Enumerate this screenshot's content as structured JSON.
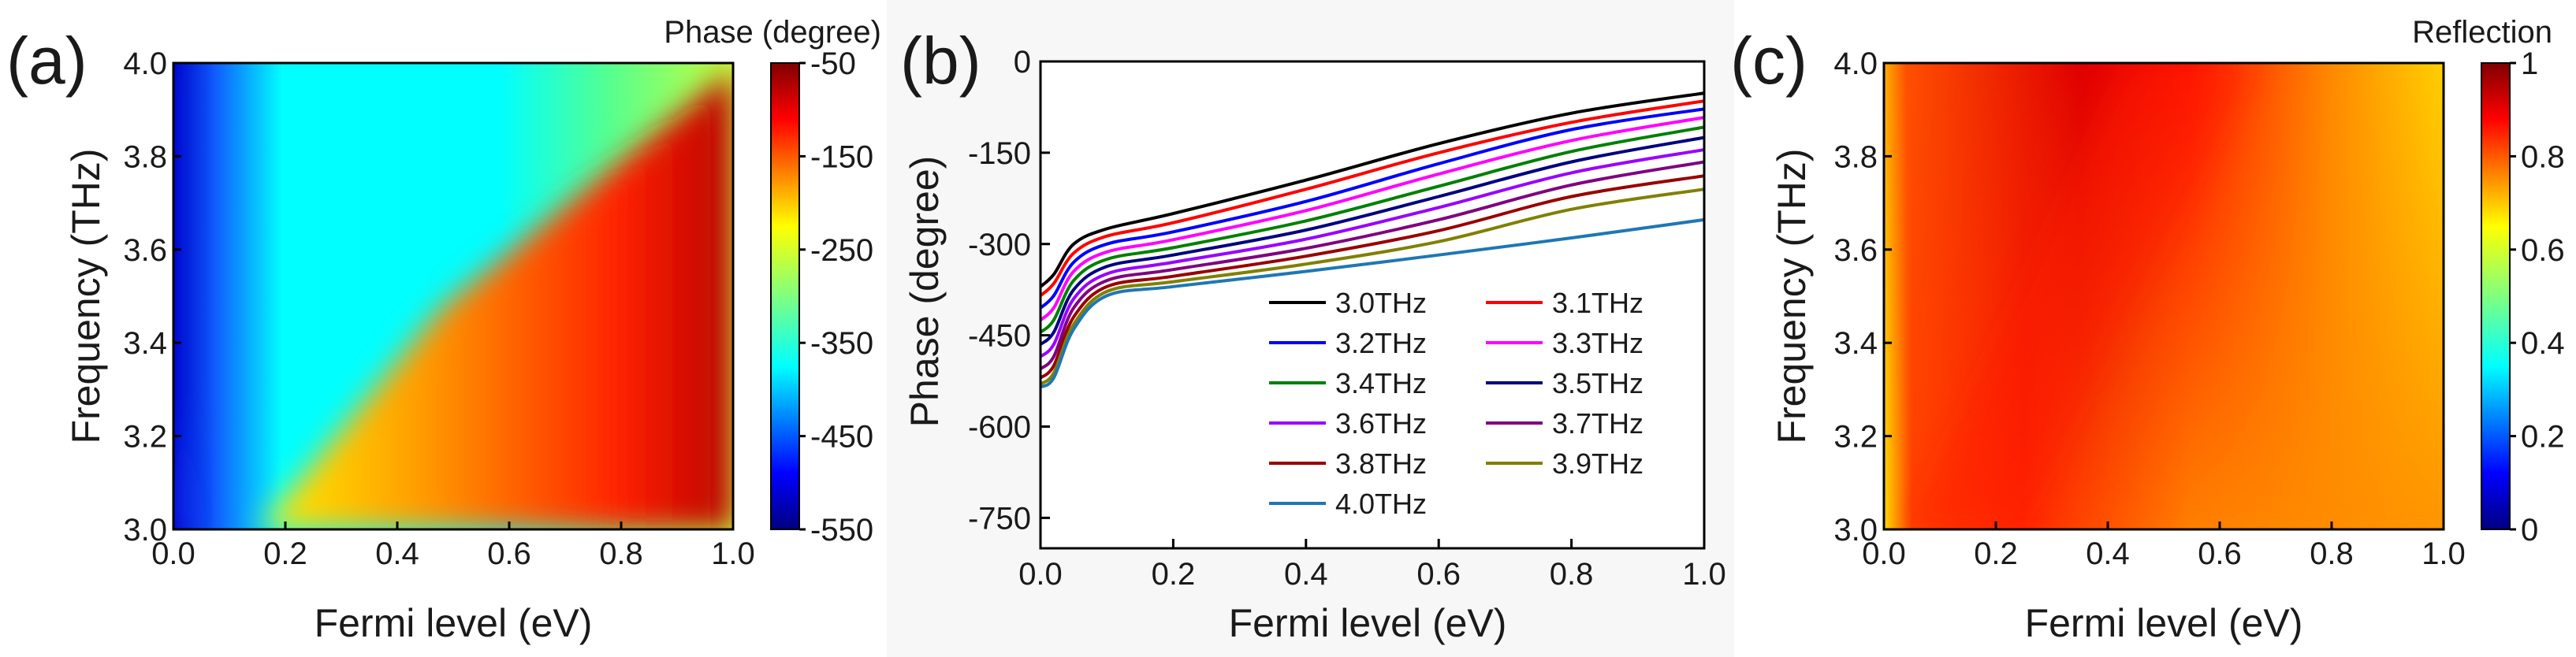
{
  "panels": {
    "a": {
      "label": "(a)"
    },
    "b": {
      "label": "(b)"
    },
    "c": {
      "label": "(c)"
    }
  },
  "chart_data": [
    {
      "id": "a",
      "type": "heatmap",
      "title": "",
      "xlabel": "Fermi level (eV)",
      "ylabel": "Frequency (THz)",
      "xlim": [
        0.0,
        1.0
      ],
      "ylim": [
        3.0,
        4.0
      ],
      "xticks": [
        "0.0",
        "0.2",
        "0.4",
        "0.6",
        "0.8",
        "1.0"
      ],
      "yticks": [
        "3.0",
        "3.2",
        "3.4",
        "3.6",
        "3.8",
        "4.0"
      ],
      "colorbar": {
        "title": "Phase (degree)",
        "range": [
          -550,
          -50
        ],
        "ticks": [
          "-50",
          "-150",
          "-250",
          "-350",
          "-450",
          "-550"
        ],
        "colormap": [
          "#000080",
          "#0000ff",
          "#00ffff",
          "#80ff80",
          "#ffff00",
          "#ff0000",
          "#800000"
        ]
      }
    },
    {
      "id": "b",
      "type": "line",
      "title": "",
      "xlabel": "Fermi level (eV)",
      "ylabel": "Phase (degree)",
      "xlim": [
        0.0,
        1.0
      ],
      "ylim": [
        -800,
        0
      ],
      "xticks": [
        "0.0",
        "0.2",
        "0.4",
        "0.6",
        "0.8",
        "1.0"
      ],
      "yticks": [
        "0",
        "-150",
        "-300",
        "-450",
        "-600",
        "-750"
      ],
      "x": [
        0.0,
        0.02,
        0.05,
        0.1,
        0.2,
        0.4,
        0.6,
        0.8,
        1.0
      ],
      "series": [
        {
          "name": "3.0THz",
          "color": "#000000",
          "values": [
            -370,
            -350,
            -300,
            -275,
            -250,
            -195,
            -135,
            -85,
            -52
          ]
        },
        {
          "name": "3.1THz",
          "color": "#ff0000",
          "values": [
            -385,
            -365,
            -315,
            -287,
            -265,
            -210,
            -150,
            -100,
            -65
          ]
        },
        {
          "name": "3.2THz",
          "color": "#0000ff",
          "values": [
            -405,
            -385,
            -330,
            -300,
            -280,
            -230,
            -168,
            -112,
            -78
          ]
        },
        {
          "name": "3.3THz",
          "color": "#ff00ff",
          "values": [
            -425,
            -405,
            -345,
            -313,
            -293,
            -245,
            -185,
            -130,
            -92
          ]
        },
        {
          "name": "3.4THz",
          "color": "#008000",
          "values": [
            -445,
            -425,
            -360,
            -325,
            -306,
            -262,
            -205,
            -148,
            -108
          ]
        },
        {
          "name": "3.5THz",
          "color": "#000080",
          "values": [
            -465,
            -445,
            -375,
            -337,
            -318,
            -277,
            -222,
            -165,
            -125
          ]
        },
        {
          "name": "3.6THz",
          "color": "#9900ff",
          "values": [
            -485,
            -465,
            -390,
            -349,
            -330,
            -292,
            -240,
            -183,
            -145
          ]
        },
        {
          "name": "3.7THz",
          "color": "#800080",
          "values": [
            -505,
            -485,
            -405,
            -360,
            -342,
            -307,
            -260,
            -203,
            -165
          ]
        },
        {
          "name": "3.8THz",
          "color": "#990000",
          "values": [
            -520,
            -500,
            -420,
            -370,
            -353,
            -320,
            -278,
            -222,
            -188
          ]
        },
        {
          "name": "3.9THz",
          "color": "#808000",
          "values": [
            -530,
            -512,
            -432,
            -378,
            -362,
            -333,
            -296,
            -243,
            -210
          ]
        },
        {
          "name": "4.0THz",
          "color": "#1f77b4",
          "values": [
            -535,
            -520,
            -440,
            -385,
            -370,
            -345,
            -318,
            -290,
            -260
          ]
        }
      ]
    },
    {
      "id": "c",
      "type": "heatmap",
      "title": "",
      "xlabel": "Fermi level (eV)",
      "ylabel": "Frequency (THz)",
      "xlim": [
        0.0,
        1.0
      ],
      "ylim": [
        3.0,
        4.0
      ],
      "xticks": [
        "0.0",
        "0.2",
        "0.4",
        "0.6",
        "0.8",
        "1.0"
      ],
      "yticks": [
        "3.0",
        "3.2",
        "3.4",
        "3.6",
        "3.8",
        "4.0"
      ],
      "colorbar": {
        "title": "Reflection",
        "range": [
          0,
          1
        ],
        "ticks": [
          "1",
          "0.8",
          "0.6",
          "0.4",
          "0.2",
          "0"
        ],
        "colormap": [
          "#000080",
          "#0000ff",
          "#00ffff",
          "#80ff80",
          "#ffff00",
          "#ff0000",
          "#800000"
        ]
      }
    }
  ]
}
